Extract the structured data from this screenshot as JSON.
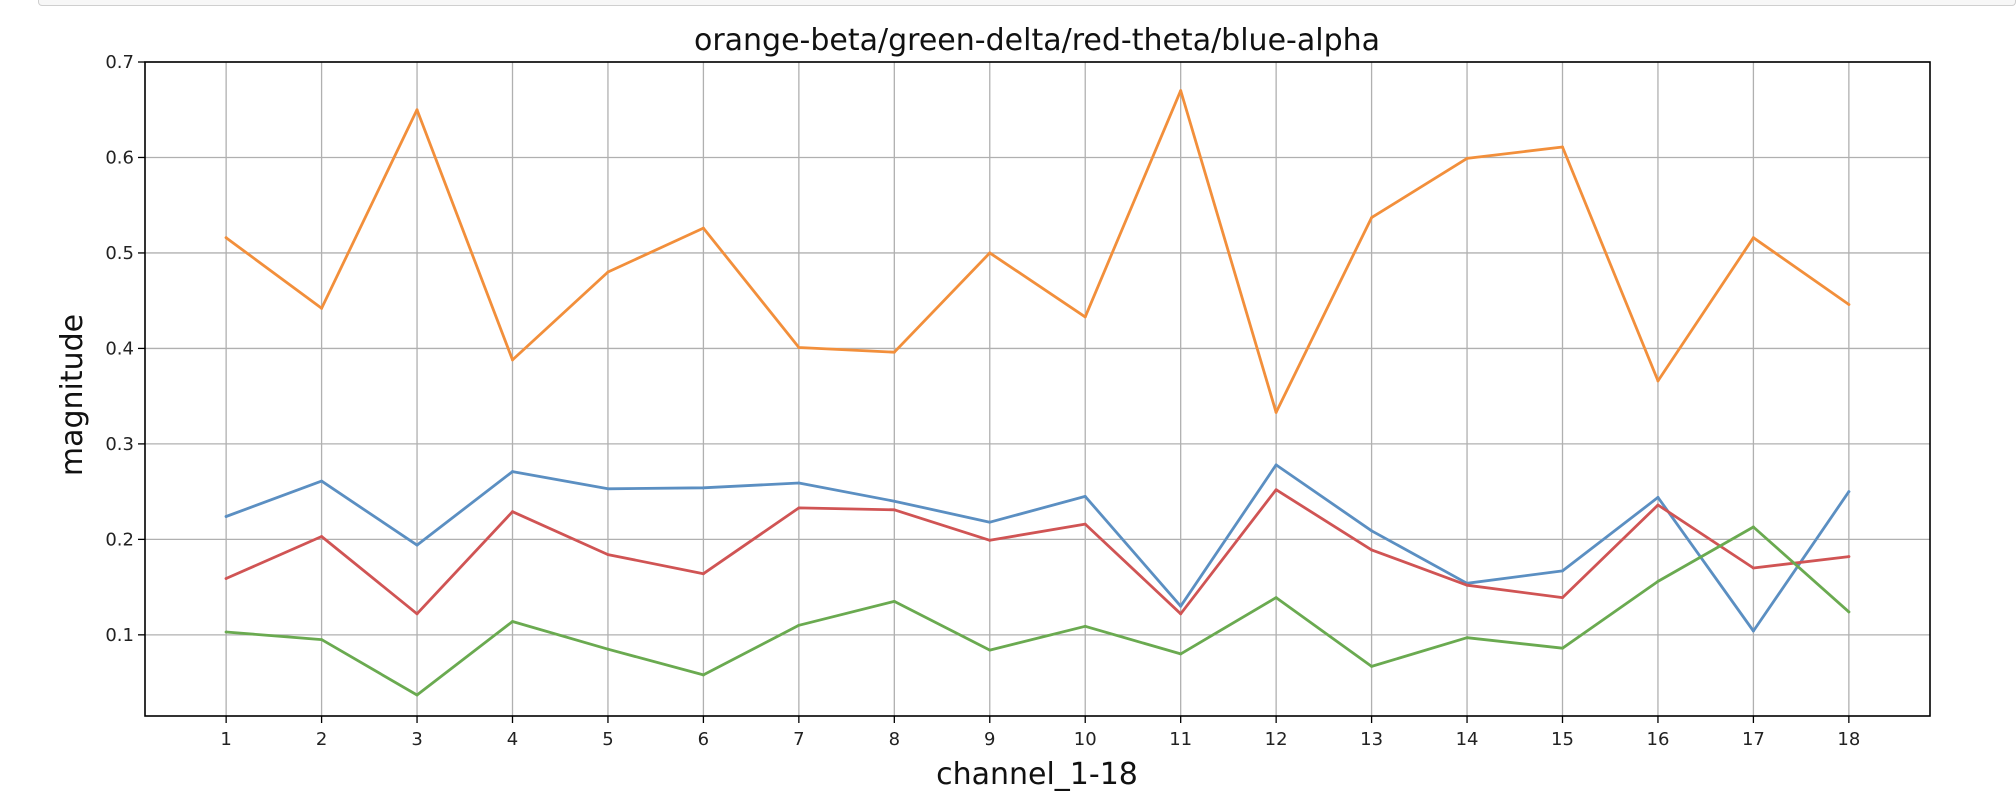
{
  "chart_data": {
    "type": "line",
    "title": "orange-beta/green-delta/red-theta/blue-alpha",
    "xlabel": "channel_1-18",
    "ylabel": "magnitude",
    "x": [
      1,
      2,
      3,
      4,
      5,
      6,
      7,
      8,
      9,
      10,
      11,
      12,
      13,
      14,
      15,
      16,
      17,
      18
    ],
    "xlim": [
      0.15,
      18.85
    ],
    "ylim": [
      0.015,
      0.7
    ],
    "yticks": [
      0.1,
      0.2,
      0.3,
      0.4,
      0.5,
      0.6,
      0.7
    ],
    "yticklabels": [
      "0.1",
      "0.2",
      "0.3",
      "0.4",
      "0.5",
      "0.6",
      "0.7"
    ],
    "grid": true,
    "series": [
      {
        "color": "#f28f3b",
        "values": [
          0.516,
          0.442,
          0.65,
          0.388,
          0.48,
          0.526,
          0.401,
          0.396,
          0.5,
          0.433,
          0.67,
          0.333,
          0.537,
          0.599,
          0.611,
          0.366,
          0.516,
          0.446
        ]
      },
      {
        "color": "#5b8fc2",
        "values": [
          0.224,
          0.261,
          0.194,
          0.271,
          0.253,
          0.254,
          0.259,
          0.24,
          0.218,
          0.245,
          0.13,
          0.278,
          0.209,
          0.154,
          0.167,
          0.244,
          0.104,
          0.25
        ]
      },
      {
        "color": "#d05454",
        "values": [
          0.159,
          0.203,
          0.122,
          0.229,
          0.184,
          0.164,
          0.233,
          0.231,
          0.199,
          0.216,
          0.122,
          0.252,
          0.189,
          0.152,
          0.139,
          0.236,
          0.17,
          0.182
        ]
      },
      {
        "color": "#6aaa50",
        "values": [
          0.103,
          0.095,
          0.037,
          0.114,
          0.085,
          0.058,
          0.11,
          0.135,
          0.084,
          0.109,
          0.08,
          0.139,
          0.067,
          0.097,
          0.086,
          0.156,
          0.213,
          0.124
        ]
      }
    ]
  }
}
